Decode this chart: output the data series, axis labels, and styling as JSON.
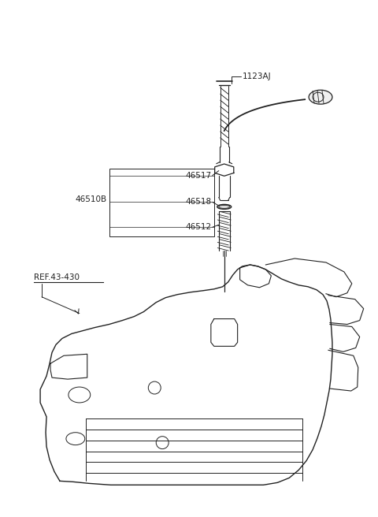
{
  "background_color": "#ffffff",
  "line_color": "#222222",
  "text_color": "#222222",
  "font_size": 7.5,
  "labels": {
    "1123AJ": {
      "ix": 308,
      "iy": 98
    },
    "46517": {
      "ix": 195,
      "iy": 228
    },
    "46510B": {
      "ix": 100,
      "iy": 255
    },
    "46518": {
      "ix": 195,
      "iy": 258
    },
    "46512": {
      "ix": 195,
      "iy": 288
    },
    "REF.43-430": {
      "ix": 42,
      "iy": 352
    }
  }
}
